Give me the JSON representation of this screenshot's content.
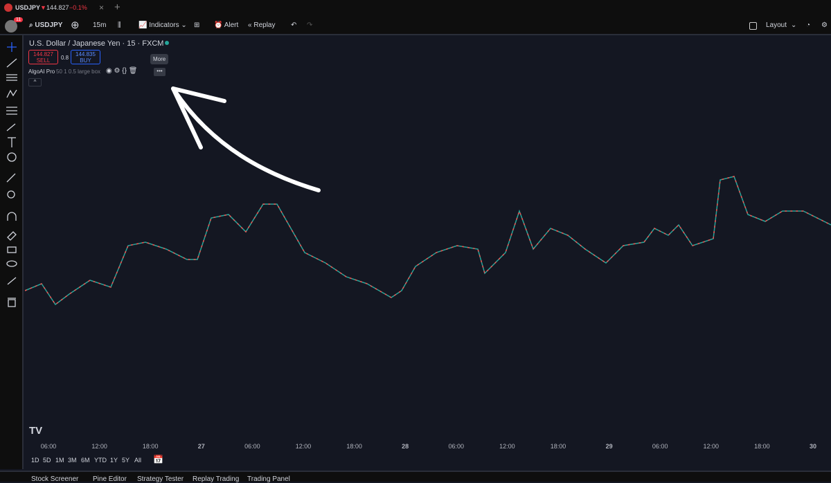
{
  "tab": {
    "symbol": "USDJPY",
    "price": "144.827",
    "change": "−0.1%"
  },
  "toolbar": {
    "badge": "11",
    "symbol": "USDJPY",
    "interval": "15m",
    "indicators": "Indicators",
    "alert": "Alert",
    "replay": "Replay",
    "layout": "Layout"
  },
  "legend": {
    "title": "U.S. Dollar / Japanese Yen · 15 · FXCM",
    "sell_price": "144.827",
    "sell": "SELL",
    "spread": "0.8",
    "buy_price": "144.835",
    "buy": "BUY",
    "indicator": "AlgoAI Pro",
    "indicator_params": "50 1 0.5 large box",
    "tooltip": "More"
  },
  "time_axis": [
    "06:00",
    "12:00",
    "18:00",
    "27",
    "06:00",
    "12:00",
    "18:00",
    "28",
    "06:00",
    "12:00",
    "18:00",
    "29",
    "06:00",
    "12:00",
    "18:00",
    "30"
  ],
  "ranges": [
    "1D",
    "5D",
    "1M",
    "3M",
    "6M",
    "YTD",
    "1Y",
    "5Y",
    "All"
  ],
  "bottom_tabs": [
    "Stock Screener",
    "Pine Editor",
    "Strategy Tester",
    "Replay Trading",
    "Trading Panel"
  ]
}
